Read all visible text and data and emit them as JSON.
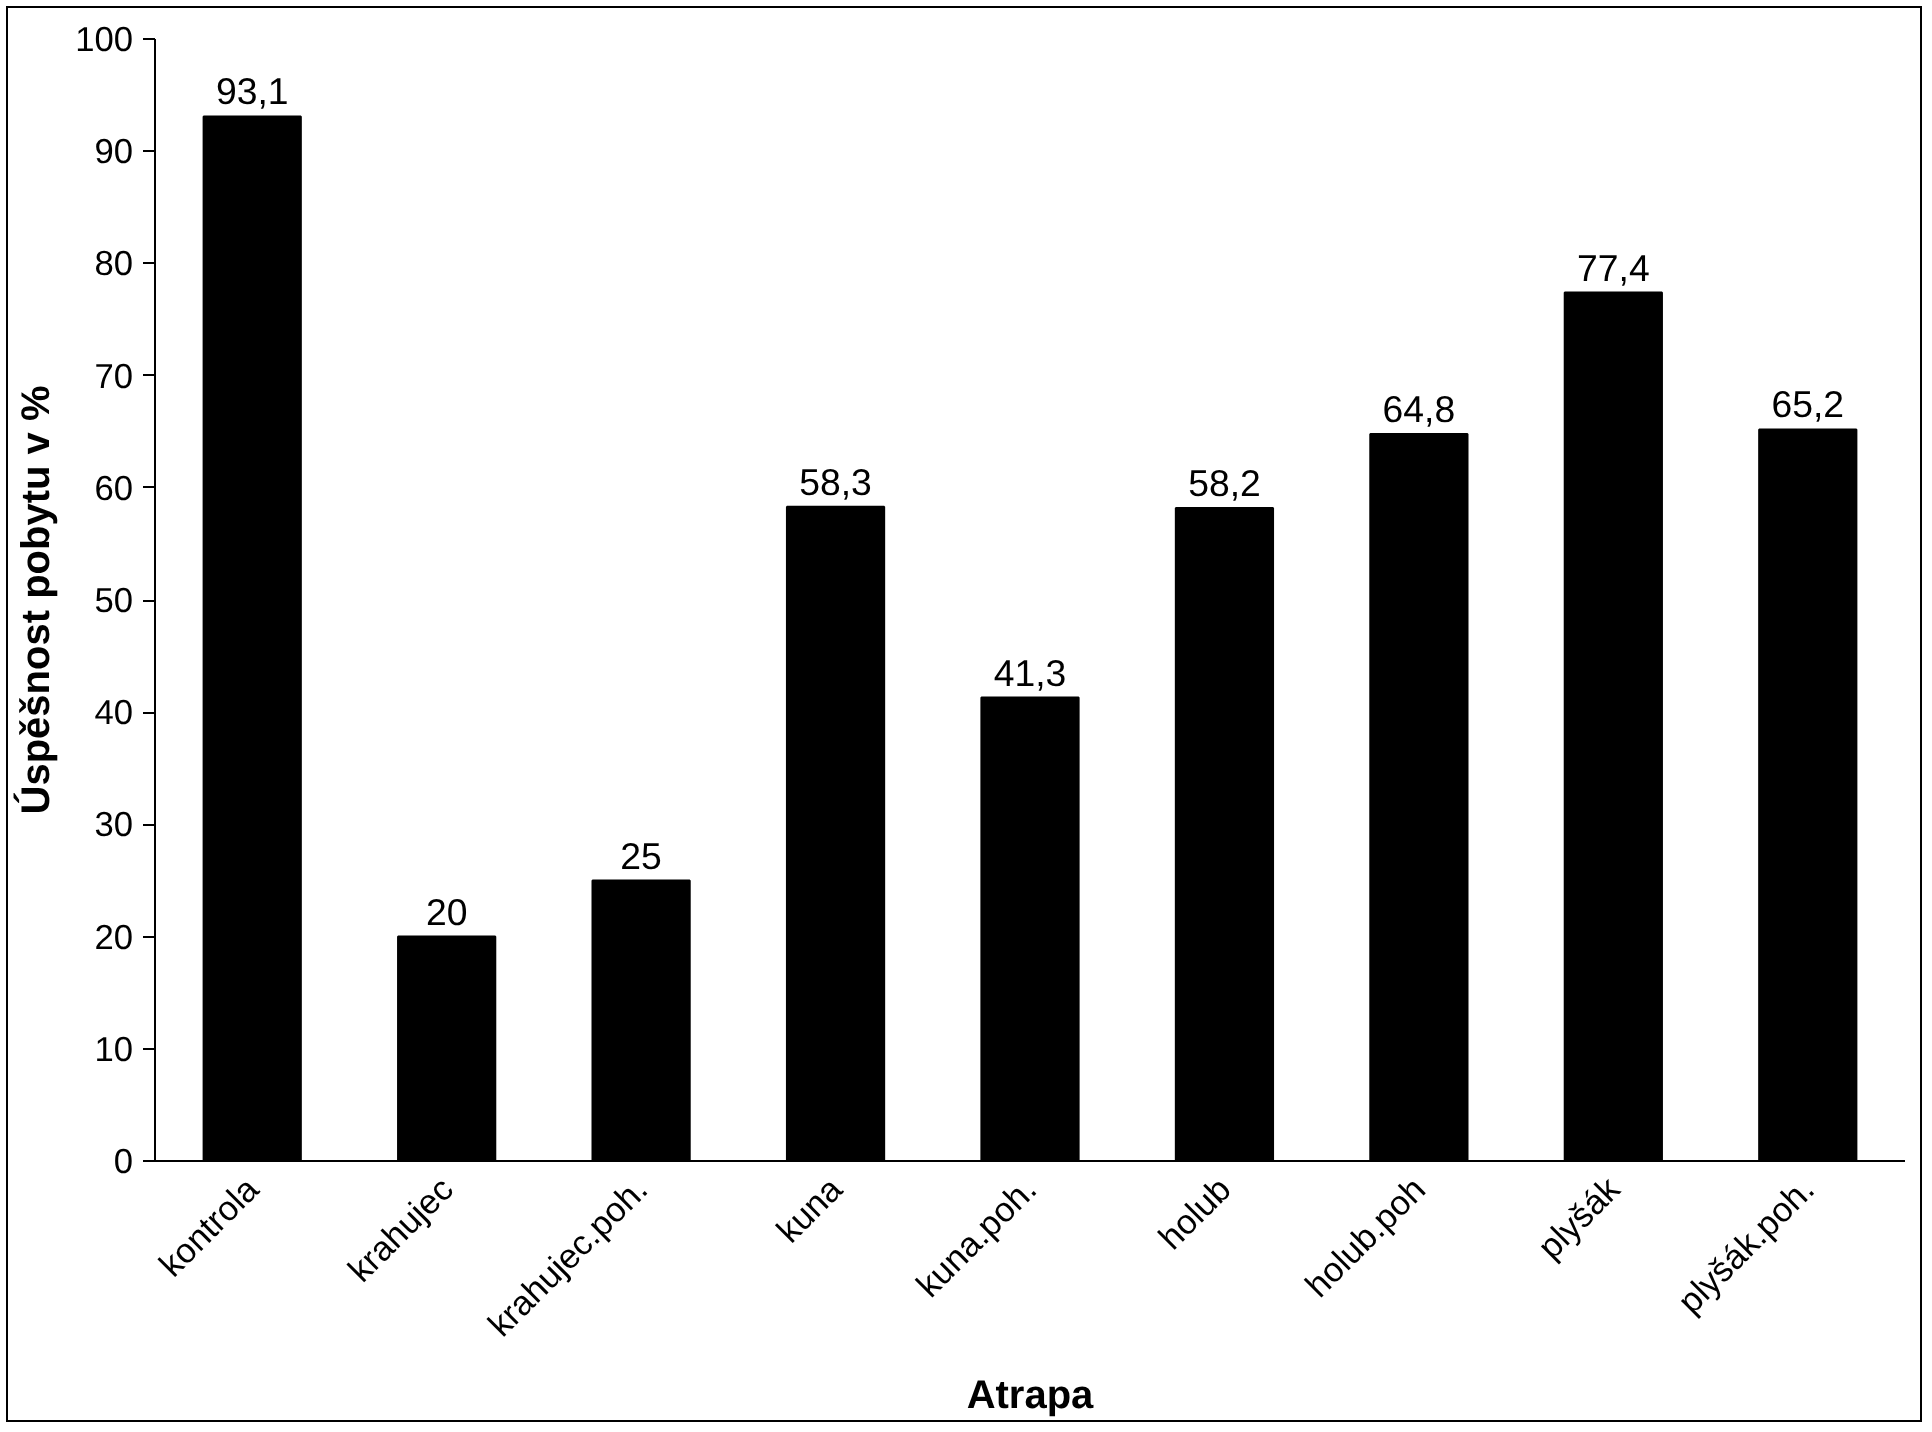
{
  "chart_data": {
    "type": "bar",
    "xlabel": "Atrapa",
    "ylabel": "Úspěšnost pobytu v %",
    "categories": [
      "kontrola",
      "krahujec",
      "krahujec.poh.",
      "kuna",
      "kuna.poh.",
      "holub",
      "holub.poh",
      "plyšák",
      "plyšák.poh."
    ],
    "values": [
      93.1,
      20,
      25,
      58.3,
      41.3,
      58.2,
      64.8,
      77.4,
      65.2
    ],
    "value_labels": [
      "93,1",
      "20",
      "25",
      "58,3",
      "41,3",
      "58,2",
      "64,8",
      "77,4",
      "65,2"
    ],
    "color": "#000000",
    "ylim": [
      0,
      100
    ],
    "yticks": [
      0,
      10,
      20,
      30,
      40,
      50,
      60,
      70,
      80,
      90,
      100
    ],
    "grid": false
  }
}
